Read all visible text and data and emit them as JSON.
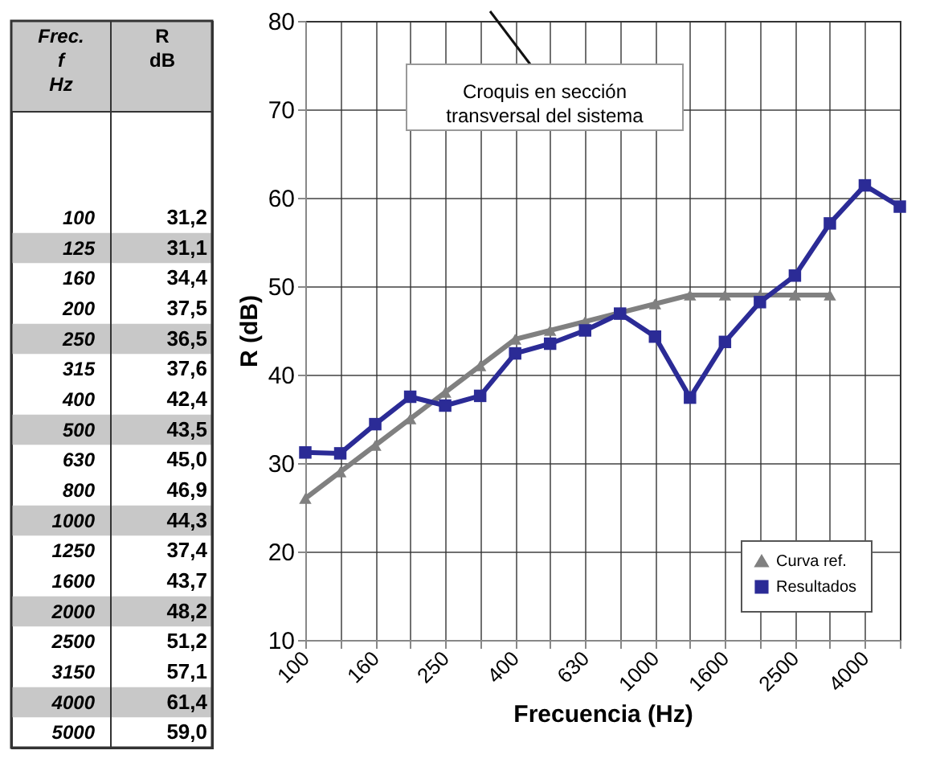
{
  "chart_data": [
    {
      "type": "other",
      "annotations": [
        "Frec.\nf\nHz",
        "R\n\ndB"
      ],
      "categories": [
        "100",
        "125",
        "160",
        "200",
        "250",
        "315",
        "400",
        "500",
        "630",
        "800",
        "1000",
        "1250",
        "1600",
        "2000",
        "2500",
        "3150",
        "4000",
        "5000"
      ],
      "value_labels": [
        "31,2",
        "31,1",
        "34,4",
        "37,5",
        "36,5",
        "37,6",
        "42,4",
        "43,5",
        "45,0",
        "46,9",
        "44,3",
        "37,4",
        "43,7",
        "48,2",
        "51,2",
        "57,1",
        "61,4",
        "59,0"
      ]
    },
    {
      "type": "line",
      "xlabel": "Frecuencia (Hz)",
      "ylabel": "R (dB)",
      "categories": [
        "100",
        null,
        "160",
        null,
        "250",
        null,
        "400",
        null,
        "630",
        null,
        "1000",
        null,
        "1600",
        null,
        "2500",
        null,
        "4000",
        null
      ],
      "series": [
        {
          "name": "Curva ref.",
          "color": "#808080",
          "marker": "triangle",
          "values": [
            26,
            29,
            32,
            35,
            38,
            41,
            44,
            45,
            46,
            47,
            48,
            49,
            49,
            49,
            49,
            49,
            null,
            null
          ]
        },
        {
          "name": "Resultados",
          "color": "#2b2b96",
          "marker": "square",
          "values": [
            31.2,
            31.1,
            34.4,
            37.5,
            36.5,
            37.6,
            42.4,
            43.5,
            45.0,
            46.9,
            44.3,
            37.4,
            43.7,
            48.2,
            51.2,
            57.1,
            61.4,
            59.0
          ]
        }
      ],
      "ylim": [
        10,
        80
      ],
      "yticks": [
        10,
        20,
        30,
        40,
        50,
        60,
        70,
        80
      ],
      "grid": true,
      "legend": "bottom right",
      "line_style": "solid",
      "annotations": [
        "Croquis  en sección\ntransversal del sistema"
      ]
    }
  ]
}
